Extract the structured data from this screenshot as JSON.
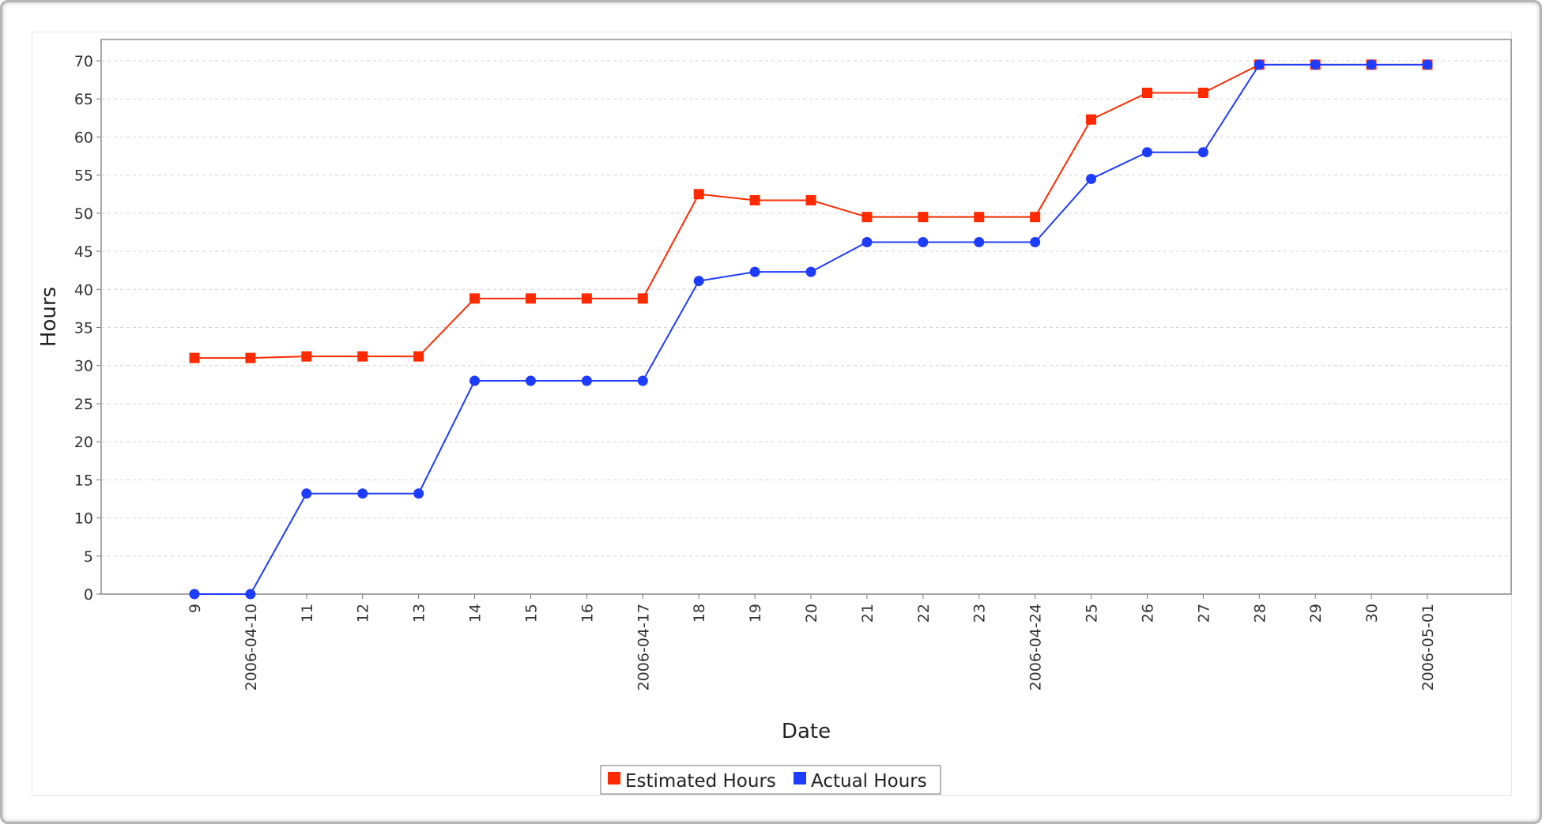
{
  "chart_data": {
    "type": "line",
    "xlabel": "Date",
    "ylabel": "Hours",
    "ylim": [
      0,
      70
    ],
    "yticks": [
      0,
      5,
      10,
      15,
      20,
      25,
      30,
      35,
      40,
      45,
      50,
      55,
      60,
      65,
      70
    ],
    "grid": true,
    "legend_position": "bottom-center",
    "categories": [
      "9",
      "2006-04-10",
      "11",
      "12",
      "13",
      "14",
      "15",
      "16",
      "2006-04-17",
      "18",
      "19",
      "20",
      "21",
      "22",
      "23",
      "2006-04-24",
      "25",
      "26",
      "27",
      "28",
      "29",
      "30",
      "2006-05-01"
    ],
    "series": [
      {
        "name": "Estimated Hours",
        "color": "#ff2a00",
        "marker": "square",
        "values": [
          31,
          31,
          31.2,
          31.2,
          31.2,
          38.8,
          38.8,
          38.8,
          38.8,
          52.5,
          51.7,
          51.7,
          49.5,
          49.5,
          49.5,
          49.5,
          62.3,
          65.8,
          65.8,
          69.5,
          69.5,
          69.5,
          69.5
        ]
      },
      {
        "name": "Actual Hours",
        "color": "#1e3cff",
        "marker": "circle",
        "values": [
          0,
          0,
          13.2,
          13.2,
          13.2,
          28,
          28,
          28,
          28,
          41.1,
          42.3,
          42.3,
          46.2,
          46.2,
          46.2,
          46.2,
          54.5,
          58,
          58,
          69.5,
          69.5,
          69.5,
          69.5
        ]
      }
    ]
  }
}
